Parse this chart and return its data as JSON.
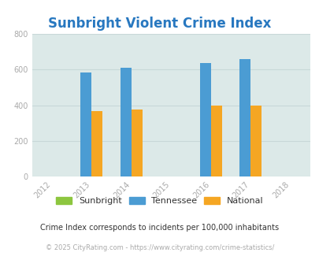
{
  "title": "Sunbright Violent Crime Index",
  "title_color": "#2878c0",
  "years": [
    2012,
    2013,
    2014,
    2015,
    2016,
    2017,
    2018
  ],
  "bar_years": [
    2013,
    2014,
    2016,
    2017
  ],
  "sunbright": [
    0,
    0,
    0,
    0
  ],
  "tennessee": [
    585,
    608,
    635,
    657
  ],
  "national": [
    368,
    378,
    398,
    398
  ],
  "bar_width": 0.28,
  "sunbright_color": "#8dc63f",
  "tennessee_color": "#4b9cd3",
  "national_color": "#f5a623",
  "bg_color": "#dce9e8",
  "ylim": [
    0,
    800
  ],
  "yticks": [
    0,
    200,
    400,
    600,
    800
  ],
  "xlim": [
    2011.5,
    2018.5
  ],
  "footnote1": "Crime Index corresponds to incidents per 100,000 inhabitants",
  "footnote2": "© 2025 CityRating.com - https://www.cityrating.com/crime-statistics/",
  "legend_labels": [
    "Sunbright",
    "Tennessee",
    "National"
  ],
  "grid_color": "#c8d8d8",
  "tick_color": "#aaaaaa"
}
